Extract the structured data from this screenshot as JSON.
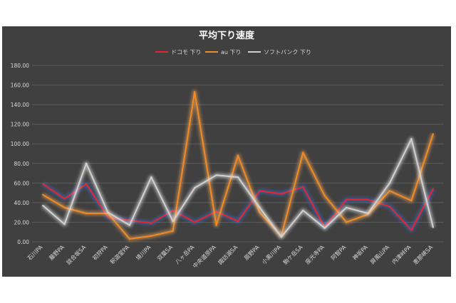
{
  "chart_data": {
    "type": "line",
    "title": "平均下り速度",
    "legend_position": "top",
    "grid": true,
    "ylim": [
      0,
      180
    ],
    "y_ticks": [
      "0.00",
      "20.00",
      "40.00",
      "60.00",
      "80.00",
      "100.00",
      "120.00",
      "140.00",
      "160.00",
      "180.00"
    ],
    "categories": [
      "石川PA",
      "藤野PA",
      "談合坂SA",
      "初狩PA",
      "釈迦堂PA",
      "境川PA",
      "双葉SA",
      "八ヶ岳PA",
      "中央道原PA",
      "諏訪湖SA",
      "辰野PA",
      "小黒川PA",
      "駒ケ岳SA",
      "座光寺PA",
      "阿智PA",
      "神坂PA",
      "屏風山PA",
      "内津峠PA",
      "恵那峡SA"
    ],
    "series": [
      {
        "name": "ドコモ 下り",
        "color": "#e8252b",
        "glow": "#3a6fd8",
        "values": [
          59,
          44,
          59,
          25,
          22,
          19,
          32,
          20,
          31,
          21,
          52,
          49,
          56,
          15,
          43,
          43,
          36,
          12,
          54
        ]
      },
      {
        "name": "au 下り",
        "color": "#f08a24",
        "glow": "#f3a55a",
        "values": [
          48,
          35,
          29,
          29,
          3,
          6,
          11,
          153,
          17,
          88,
          30,
          6,
          91,
          47,
          20,
          28,
          52,
          42,
          110
        ]
      },
      {
        "name": "ソフトバンク 下り",
        "color": "#d0d0d0",
        "glow": "#ededed",
        "values": [
          37,
          18,
          80,
          30,
          17,
          66,
          21,
          55,
          68,
          66,
          35,
          5,
          32,
          14,
          35,
          29,
          60,
          105,
          15
        ]
      }
    ]
  }
}
